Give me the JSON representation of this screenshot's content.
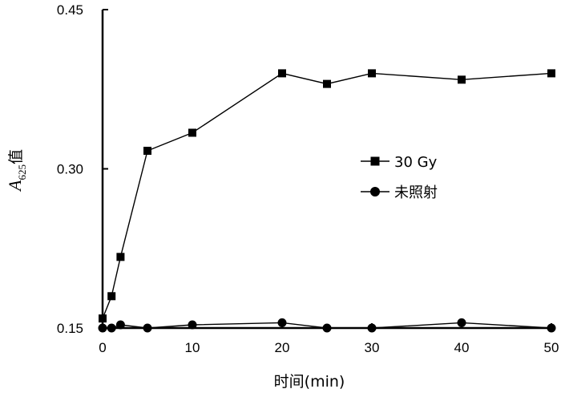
{
  "chart_data": {
    "type": "line",
    "xlabel": "时间(min)",
    "ylabel": {
      "symbol": "A",
      "subscript": "625",
      "suffix": "值"
    },
    "xlim": [
      0,
      50
    ],
    "ylim": [
      0.15,
      0.45
    ],
    "xticks": [
      "0",
      "10",
      "20",
      "30",
      "40",
      "50"
    ],
    "yticks": [
      "0.15",
      "0.30",
      "0.45"
    ],
    "grid": false,
    "legend_position": "center-right",
    "series": [
      {
        "name": "30 Gy",
        "marker": "square",
        "x": [
          0,
          1,
          2,
          5,
          10,
          20,
          25,
          30,
          40,
          50
        ],
        "y": [
          0.159,
          0.18,
          0.217,
          0.317,
          0.334,
          0.39,
          0.38,
          0.39,
          0.384,
          0.39
        ]
      },
      {
        "name": "未照射",
        "marker": "circle",
        "x": [
          0,
          1,
          2,
          5,
          10,
          20,
          25,
          30,
          40,
          50
        ],
        "y": [
          0.15,
          0.15,
          0.153,
          0.15,
          0.153,
          0.155,
          0.15,
          0.15,
          0.155,
          0.15
        ]
      }
    ]
  }
}
